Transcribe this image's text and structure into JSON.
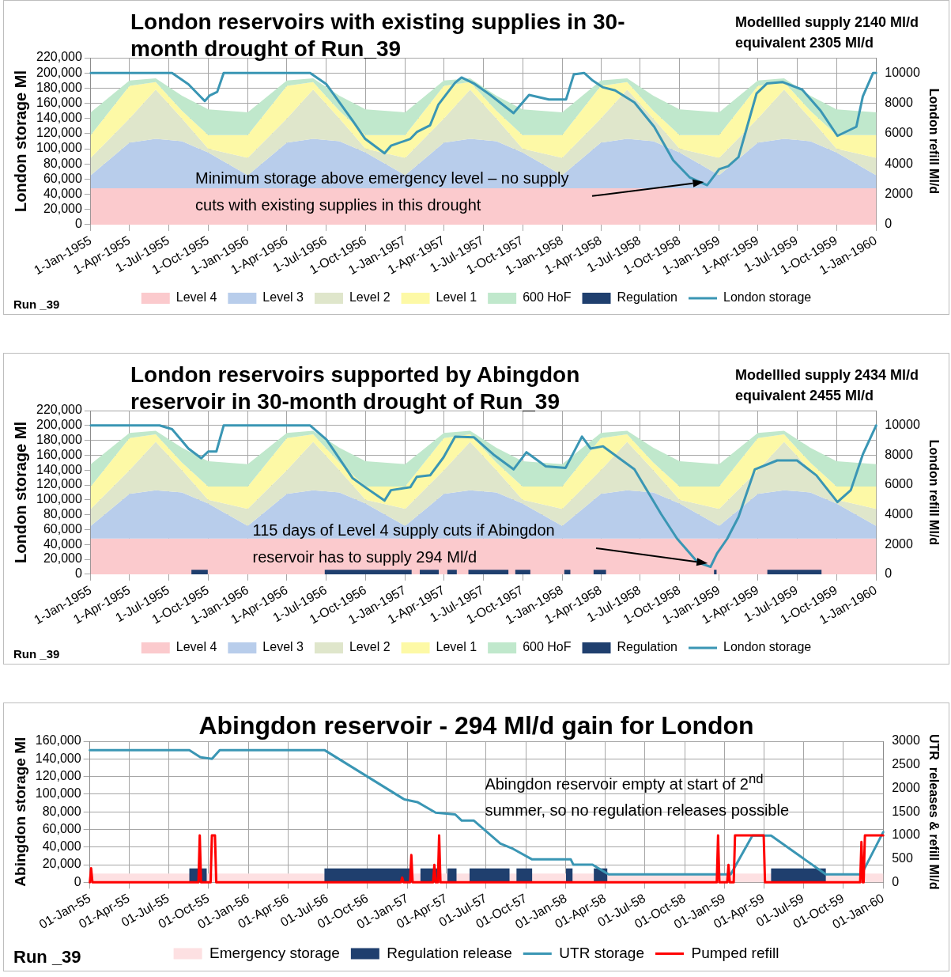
{
  "chart_data": [
    {
      "type": "area",
      "title": "London reservoirs with existing supplies in 30-month drought of Run_39",
      "ylabel": "London storage Ml",
      "y2label": "London refill Ml/d",
      "annotations": [
        "Modellled supply 2140 Ml/d",
        "equivalent 2305 Ml/d",
        "Minimum storage above emergency level – no supply cuts with existing supplies in this drought",
        "Run _39"
      ],
      "x": [
        "1955-01-01",
        "1955-04-01",
        "1955-06-01",
        "1955-08-01",
        "1955-10-01",
        "1956-01-01",
        "1956-04-01",
        "1956-06-01",
        "1956-08-01",
        "1956-10-01",
        "1957-01-01",
        "1957-04-01",
        "1957-06-01",
        "1957-08-01",
        "1957-10-01",
        "1958-01-01",
        "1958-04-01",
        "1958-06-01",
        "1958-08-01",
        "1958-10-01",
        "1959-01-01",
        "1959-04-01",
        "1959-06-01",
        "1959-08-01",
        "1959-10-01",
        "1960-01-01"
      ],
      "series": [
        {
          "name": "Level 4",
          "color": "#fbcacd",
          "values": [
            48000,
            48000,
            48000,
            48000,
            48000,
            48000,
            48000,
            48000,
            48000,
            48000,
            48000,
            48000,
            48000,
            48000,
            48000,
            48000,
            48000,
            48000,
            48000,
            48000,
            48000,
            48000,
            48000,
            48000,
            48000,
            48000
          ]
        },
        {
          "name": "Level 3",
          "color": "#b8cdeb",
          "values": [
            17000,
            60000,
            65000,
            62000,
            47000,
            17000,
            60000,
            65000,
            62000,
            47000,
            17000,
            60000,
            65000,
            62000,
            47000,
            17000,
            60000,
            65000,
            62000,
            47000,
            17000,
            60000,
            65000,
            62000,
            47000,
            17000
          ]
        },
        {
          "name": "Level 2",
          "color": "#dfe6cb",
          "values": [
            23000,
            32000,
            65000,
            30000,
            5000,
            23000,
            32000,
            65000,
            30000,
            5000,
            23000,
            32000,
            65000,
            30000,
            5000,
            23000,
            32000,
            65000,
            30000,
            5000,
            23000,
            32000,
            65000,
            30000,
            5000,
            23000
          ]
        },
        {
          "name": "Level 1",
          "color": "#fdf9a6",
          "values": [
            30000,
            43000,
            10000,
            10000,
            18000,
            30000,
            43000,
            10000,
            10000,
            18000,
            30000,
            43000,
            10000,
            10000,
            18000,
            30000,
            43000,
            10000,
            10000,
            18000,
            30000,
            43000,
            10000,
            10000,
            18000,
            30000
          ]
        },
        {
          "name": "600 HoF",
          "color": "#c0e8cc",
          "values": [
            30000,
            7000,
            5000,
            20000,
            34000,
            30000,
            7000,
            5000,
            20000,
            34000,
            30000,
            7000,
            5000,
            20000,
            34000,
            30000,
            7000,
            5000,
            20000,
            34000,
            30000,
            7000,
            5000,
            20000,
            34000,
            30000
          ]
        },
        {
          "name": "Regulation",
          "color": "#1f3f6e",
          "axis": "y2",
          "values": [
            null,
            null,
            null,
            null,
            null,
            null,
            null,
            null,
            null,
            null,
            null,
            null,
            null,
            null,
            null,
            null,
            null,
            null,
            null,
            null,
            null,
            null,
            null,
            null,
            null,
            null
          ]
        },
        {
          "name": "London storage",
          "color": "#3a96b4",
          "type": "line",
          "x": [
            "1955-01-01",
            "1955-07-09",
            "1955-08-16",
            "1955-09-23",
            "1955-10-04",
            "1955-10-22",
            "1955-11-06",
            "1956-05-25",
            "1956-07-02",
            "1956-09-01",
            "1956-09-30",
            "1956-11-14",
            "1956-11-29",
            "1957-01-13",
            "1957-01-28",
            "1957-02-28",
            "1957-03-19",
            "1957-04-27",
            "1957-05-12",
            "1957-06-10",
            "1957-07-18",
            "1957-09-10",
            "1957-10-16",
            "1957-12-01",
            "1958-01-10",
            "1958-01-28",
            "1958-02-21",
            "1958-03-13",
            "1958-04-06",
            "1958-05-04",
            "1958-06-18",
            "1958-08-03",
            "1958-09-16",
            "1958-10-25",
            "1958-12-04",
            "1959-01-01",
            "1959-01-22",
            "1959-02-15",
            "1959-03-07",
            "1959-03-29",
            "1959-04-22",
            "1959-05-28",
            "1959-07-13",
            "1959-08-25",
            "1959-10-03",
            "1959-11-16",
            "1959-12-01",
            "1959-12-25",
            "1960-01-01"
          ],
          "values": [
            200000,
            200000,
            185000,
            163000,
            170000,
            175000,
            200000,
            200000,
            185000,
            137000,
            113000,
            94000,
            104000,
            113000,
            122000,
            131000,
            158000,
            187000,
            194000,
            186000,
            171000,
            147000,
            171000,
            165000,
            165000,
            198000,
            200000,
            190000,
            181000,
            177000,
            161000,
            129000,
            85000,
            62000,
            52000,
            73000,
            77000,
            89000,
            129000,
            173000,
            186000,
            188000,
            178000,
            150000,
            117000,
            129000,
            169000,
            200000,
            200000
          ]
        }
      ],
      "xlim": [
        "1955-01-01",
        "1960-01-01"
      ],
      "xticks": [
        {
          "value": "1955-01-01",
          "label": "1-Jan-1955"
        },
        {
          "value": "1955-04-01",
          "label": "1-Apr-1955"
        },
        {
          "value": "1955-07-01",
          "label": "1-Jul-1955"
        },
        {
          "value": "1955-10-01",
          "label": "1-Oct-1955"
        },
        {
          "value": "1956-01-01",
          "label": "1-Jan-1956"
        },
        {
          "value": "1956-04-01",
          "label": "1-Apr-1956"
        },
        {
          "value": "1956-07-01",
          "label": "1-Jul-1956"
        },
        {
          "value": "1956-10-01",
          "label": "1-Oct-1956"
        },
        {
          "value": "1957-01-01",
          "label": "1-Jan-1957"
        },
        {
          "value": "1957-04-01",
          "label": "1-Apr-1957"
        },
        {
          "value": "1957-07-01",
          "label": "1-Jul-1957"
        },
        {
          "value": "1957-10-01",
          "label": "1-Oct-1957"
        },
        {
          "value": "1958-01-01",
          "label": "1-Jan-1958"
        },
        {
          "value": "1958-04-01",
          "label": "1-Apr-1958"
        },
        {
          "value": "1958-07-01",
          "label": "1-Jul-1958"
        },
        {
          "value": "1958-10-01",
          "label": "1-Oct-1958"
        },
        {
          "value": "1959-01-01",
          "label": "1-Jan-1959"
        },
        {
          "value": "1959-04-01",
          "label": "1-Apr-1959"
        },
        {
          "value": "1959-07-01",
          "label": "1-Jul-1959"
        },
        {
          "value": "1959-10-01",
          "label": "1-Oct-1959"
        },
        {
          "value": "1960-01-01",
          "label": "1-Jan-1960"
        }
      ],
      "ylim": [
        0,
        220000
      ],
      "yticks": [
        {
          "value": 0,
          "label": "0"
        },
        {
          "value": 20000,
          "label": "20,000"
        },
        {
          "value": 40000,
          "label": "40,000"
        },
        {
          "value": 60000,
          "label": "60,000"
        },
        {
          "value": 80000,
          "label": "80,000"
        },
        {
          "value": 100000,
          "label": "100,000"
        },
        {
          "value": 120000,
          "label": "120,000"
        },
        {
          "value": 140000,
          "label": "140,000"
        },
        {
          "value": 160000,
          "label": "160,000"
        },
        {
          "value": 180000,
          "label": "180,000"
        },
        {
          "value": 200000,
          "label": "200,000"
        },
        {
          "value": 220000,
          "label": "220,000"
        }
      ],
      "y2lim": [
        0,
        11000
      ],
      "y2ticks": [
        0,
        2000,
        4000,
        6000,
        8000,
        10000
      ],
      "grid": true,
      "legend": "bottom",
      "marker": "none",
      "line_style": "solid",
      "stacked": true
    },
    {
      "type": "area",
      "title": "London reservoirs supported by Abingdon reservoir in 30-month drought of Run_39",
      "ylabel": "London storage Ml",
      "y2label": "London refill Ml/d",
      "annotations": [
        "Modellled supply 2434 Ml/d",
        "equivalent 2455 Ml/d",
        "115 days of Level 4 supply cuts if Abingdon reservoir has to supply 294 Ml/d",
        "Run _39"
      ],
      "x": [
        "1955-01-01",
        "1955-04-01",
        "1955-06-01",
        "1955-08-01",
        "1955-10-01",
        "1956-01-01",
        "1956-04-01",
        "1956-06-01",
        "1956-08-01",
        "1956-10-01",
        "1957-01-01",
        "1957-04-01",
        "1957-06-01",
        "1957-08-01",
        "1957-10-01",
        "1958-01-01",
        "1958-04-01",
        "1958-06-01",
        "1958-08-01",
        "1958-10-01",
        "1959-01-01",
        "1959-04-01",
        "1959-06-01",
        "1959-08-01",
        "1959-10-01",
        "1960-01-01"
      ],
      "series": [
        {
          "name": "Level 4",
          "color": "#fbcacd",
          "values": [
            48000,
            48000,
            48000,
            48000,
            48000,
            48000,
            48000,
            48000,
            48000,
            48000,
            48000,
            48000,
            48000,
            48000,
            48000,
            48000,
            48000,
            48000,
            48000,
            48000,
            48000,
            48000,
            48000,
            48000,
            48000,
            48000
          ]
        },
        {
          "name": "Level 3",
          "color": "#b8cdeb",
          "values": [
            17000,
            60000,
            65000,
            62000,
            47000,
            17000,
            60000,
            65000,
            62000,
            47000,
            17000,
            60000,
            65000,
            62000,
            47000,
            17000,
            60000,
            65000,
            62000,
            47000,
            17000,
            60000,
            65000,
            62000,
            47000,
            17000
          ]
        },
        {
          "name": "Level 2",
          "color": "#dfe6cb",
          "values": [
            23000,
            32000,
            65000,
            30000,
            5000,
            23000,
            32000,
            65000,
            30000,
            5000,
            23000,
            32000,
            65000,
            30000,
            5000,
            23000,
            32000,
            65000,
            30000,
            5000,
            23000,
            32000,
            65000,
            30000,
            5000,
            23000
          ]
        },
        {
          "name": "Level 1",
          "color": "#fdf9a6",
          "values": [
            30000,
            43000,
            10000,
            10000,
            18000,
            30000,
            43000,
            10000,
            10000,
            18000,
            30000,
            43000,
            10000,
            10000,
            18000,
            30000,
            43000,
            10000,
            10000,
            18000,
            30000,
            43000,
            10000,
            10000,
            18000,
            30000
          ]
        },
        {
          "name": "600 HoF",
          "color": "#c0e8cc",
          "values": [
            30000,
            7000,
            5000,
            20000,
            34000,
            30000,
            7000,
            5000,
            20000,
            34000,
            30000,
            7000,
            5000,
            20000,
            34000,
            30000,
            7000,
            5000,
            20000,
            34000,
            30000,
            7000,
            5000,
            20000,
            34000,
            30000
          ]
        },
        {
          "name": "Regulation",
          "color": "#1f3f6e",
          "axis": "y2",
          "x": [
            "1955-01-01",
            "1955-08-23",
            "1955-08-23",
            "1955-09-30",
            "1955-09-30",
            "1956-06-28",
            "1956-06-28",
            "1957-01-16",
            "1957-01-16",
            "1957-02-04",
            "1957-02-04",
            "1957-03-20",
            "1957-03-20",
            "1957-04-09",
            "1957-04-09",
            "1957-05-01",
            "1957-05-01",
            "1957-05-28",
            "1957-05-28",
            "1957-08-29",
            "1957-08-29",
            "1957-09-14",
            "1957-09-14",
            "1957-10-19",
            "1957-10-19",
            "1958-01-06",
            "1958-01-06",
            "1958-01-20",
            "1958-01-20",
            "1958-03-15",
            "1958-03-15",
            "1958-04-13",
            "1958-04-13",
            "1958-12-20",
            "1958-12-20",
            "1958-12-26",
            "1958-12-26",
            "1959-04-23",
            "1959-04-23",
            "1959-08-27",
            "1959-08-27",
            "1960-01-01"
          ],
          "values": [
            0,
            0,
            294,
            294,
            0,
            0,
            294,
            294,
            0,
            0,
            294,
            294,
            0,
            0,
            294,
            294,
            0,
            0,
            294,
            294,
            0,
            0,
            294,
            294,
            0,
            0,
            294,
            294,
            0,
            0,
            294,
            294,
            0,
            0,
            294,
            294,
            0,
            0,
            294,
            294,
            0,
            0
          ]
        },
        {
          "name": "London storage",
          "color": "#3a96b4",
          "type": "line",
          "x": [
            "1955-01-01",
            "1955-06-10",
            "1955-07-09",
            "1955-08-16",
            "1955-09-15",
            "1955-10-01",
            "1955-10-20",
            "1955-11-06",
            "1956-05-25",
            "1956-07-02",
            "1956-09-01",
            "1956-09-30",
            "1956-11-14",
            "1956-11-29",
            "1957-01-13",
            "1957-01-28",
            "1957-02-28",
            "1957-03-31",
            "1957-04-27",
            "1957-06-10",
            "1957-07-25",
            "1957-09-10",
            "1957-10-10",
            "1957-11-24",
            "1958-01-09",
            "1958-02-16",
            "1958-03-08",
            "1958-04-06",
            "1958-06-18",
            "1958-08-19",
            "1958-09-25",
            "1958-11-12",
            "1958-12-12",
            "1958-12-27",
            "1959-01-20",
            "1959-02-15",
            "1959-03-25",
            "1959-05-16",
            "1959-07-01",
            "1959-08-15",
            "1959-10-03",
            "1959-11-03",
            "1959-12-01",
            "1960-01-01"
          ],
          "values": [
            200000,
            200000,
            195000,
            169000,
            156000,
            165000,
            165000,
            200000,
            200000,
            181000,
            129000,
            117000,
            99000,
            113000,
            117000,
            131000,
            133000,
            157000,
            185000,
            184000,
            161000,
            141000,
            164000,
            145000,
            143000,
            185000,
            169000,
            172000,
            141000,
            81000,
            48000,
            16000,
            10000,
            28000,
            48000,
            77000,
            141000,
            153000,
            153000,
            133000,
            97000,
            113000,
            161000,
            200000
          ]
        }
      ],
      "xlim": [
        "1955-01-01",
        "1960-01-01"
      ],
      "xticks": [
        {
          "value": "1955-01-01",
          "label": "1-Jan-1955"
        },
        {
          "value": "1955-04-01",
          "label": "1-Apr-1955"
        },
        {
          "value": "1955-07-01",
          "label": "1-Jul-1955"
        },
        {
          "value": "1955-10-01",
          "label": "1-Oct-1955"
        },
        {
          "value": "1956-01-01",
          "label": "1-Jan-1956"
        },
        {
          "value": "1956-04-01",
          "label": "1-Apr-1956"
        },
        {
          "value": "1956-07-01",
          "label": "1-Jul-1956"
        },
        {
          "value": "1956-10-01",
          "label": "1-Oct-1956"
        },
        {
          "value": "1957-01-01",
          "label": "1-Jan-1957"
        },
        {
          "value": "1957-04-01",
          "label": "1-Apr-1957"
        },
        {
          "value": "1957-07-01",
          "label": "1-Jul-1957"
        },
        {
          "value": "1957-10-01",
          "label": "1-Oct-1957"
        },
        {
          "value": "1958-01-01",
          "label": "1-Jan-1958"
        },
        {
          "value": "1958-04-01",
          "label": "1-Apr-1958"
        },
        {
          "value": "1958-07-01",
          "label": "1-Jul-1958"
        },
        {
          "value": "1958-10-01",
          "label": "1-Oct-1958"
        },
        {
          "value": "1959-01-01",
          "label": "1-Jan-1959"
        },
        {
          "value": "1959-04-01",
          "label": "1-Apr-1959"
        },
        {
          "value": "1959-07-01",
          "label": "1-Jul-1959"
        },
        {
          "value": "1959-10-01",
          "label": "1-Oct-1959"
        },
        {
          "value": "1960-01-01",
          "label": "1-Jan-1960"
        }
      ],
      "ylim": [
        0,
        220000
      ],
      "yticks": [
        {
          "value": 0,
          "label": "0"
        },
        {
          "value": 20000,
          "label": "20,000"
        },
        {
          "value": 40000,
          "label": "40,000"
        },
        {
          "value": 60000,
          "label": "60,000"
        },
        {
          "value": 80000,
          "label": "80,000"
        },
        {
          "value": 100000,
          "label": "100,000"
        },
        {
          "value": 120000,
          "label": "120,000"
        },
        {
          "value": 140000,
          "label": "140,000"
        },
        {
          "value": 160000,
          "label": "160,000"
        },
        {
          "value": 180000,
          "label": "180,000"
        },
        {
          "value": 200000,
          "label": "200,000"
        },
        {
          "value": 220000,
          "label": "220,000"
        }
      ],
      "y2lim": [
        0,
        11000
      ],
      "y2ticks": [
        0,
        2000,
        4000,
        6000,
        8000,
        10000
      ],
      "grid": true,
      "legend": "bottom",
      "marker": "none",
      "line_style": "solid",
      "stacked": true
    },
    {
      "type": "line",
      "title": "Abingdon reservoir - 294 Ml/d gain for London",
      "ylabel": "Abingdon storage Ml",
      "y2label": "UTR  releases & refill Ml/d",
      "annotations": [
        "Abingdon reservoir empty at start of 2$^{nd}$ summer, so no regulation releases possible",
        "Run _39"
      ],
      "series": [
        {
          "name": "Emergency storage",
          "color": "#fde0e2",
          "type": "area",
          "x": [
            "1955-01-01",
            "1960-01-01"
          ],
          "values": [
            10000,
            10000
          ]
        },
        {
          "name": "Regulation release",
          "color": "#1f3f6e",
          "type": "area",
          "axis": "y2",
          "x": [
            "1955-01-01",
            "1955-08-18",
            "1955-08-18",
            "1955-09-27",
            "1955-09-27",
            "1956-06-24",
            "1956-06-24",
            "1957-01-12",
            "1957-01-12",
            "1957-01-31",
            "1957-01-31",
            "1957-03-15",
            "1957-03-15",
            "1957-04-03",
            "1957-04-03",
            "1957-04-24",
            "1957-04-24",
            "1957-05-24",
            "1957-05-24",
            "1957-08-24",
            "1957-08-24",
            "1957-09-09",
            "1957-09-09",
            "1957-10-15",
            "1957-10-15",
            "1958-01-01",
            "1958-01-01",
            "1958-01-16",
            "1958-01-16",
            "1958-03-06",
            "1958-03-06",
            "1958-04-06",
            "1958-04-06",
            "1959-04-18",
            "1959-04-18",
            "1959-08-22",
            "1959-08-22",
            "1960-01-01"
          ],
          "values": [
            0,
            0,
            294,
            294,
            0,
            0,
            294,
            294,
            0,
            0,
            294,
            294,
            0,
            0,
            294,
            294,
            0,
            0,
            294,
            294,
            0,
            0,
            294,
            294,
            0,
            0,
            294,
            294,
            0,
            0,
            294,
            294,
            0,
            0,
            294,
            294,
            0,
            0
          ]
        },
        {
          "name": "UTR storage",
          "color": "#3a96b4",
          "x": [
            "1955-01-01",
            "1955-08-18",
            "1955-09-12",
            "1955-10-09",
            "1955-10-27",
            "1956-06-24",
            "1956-12-25",
            "1957-01-24",
            "1957-03-07",
            "1957-04-21",
            "1957-05-06",
            "1957-06-03",
            "1957-08-03",
            "1957-09-01",
            "1957-10-15",
            "1958-01-12",
            "1958-01-18",
            "1958-03-03",
            "1958-04-09",
            "1959-01-15",
            "1959-03-06",
            "1959-04-18",
            "1959-08-22",
            "1959-11-12",
            "1960-01-01"
          ],
          "values": [
            150000,
            150000,
            142000,
            140000,
            150000,
            150000,
            94000,
            91000,
            79000,
            77000,
            70000,
            70000,
            44000,
            38000,
            26000,
            26000,
            20000,
            20000,
            9000,
            9000,
            53000,
            53000,
            9000,
            9000,
            57000
          ]
        },
        {
          "name": "Pumped refill",
          "color": "#ff0000",
          "axis": "y2",
          "x": [
            "1955-01-01",
            "1955-01-04",
            "1955-01-07",
            "1955-09-08",
            "1955-09-11",
            "1955-09-14",
            "1955-10-06",
            "1955-10-09",
            "1955-10-16",
            "1955-10-19",
            "1956-12-17",
            "1956-12-20",
            "1956-12-23",
            "1957-01-07",
            "1957-01-10",
            "1957-01-13",
            "1957-03-01",
            "1957-03-04",
            "1957-03-07",
            "1957-03-12",
            "1957-03-15",
            "1957-03-18",
            "1958-12-14",
            "1958-12-17",
            "1958-12-20",
            "1959-01-07",
            "1959-01-10",
            "1959-01-13",
            "1959-01-22",
            "1959-01-25",
            "1959-04-01",
            "1959-04-04",
            "1959-11-09",
            "1959-11-12",
            "1959-11-15",
            "1959-11-17",
            "1959-11-20",
            "1960-01-01"
          ],
          "values": [
            0,
            300,
            0,
            0,
            1000,
            0,
            0,
            1000,
            1000,
            0,
            0,
            100,
            0,
            0,
            580,
            0,
            0,
            370,
            0,
            0,
            1000,
            0,
            0,
            1000,
            0,
            0,
            370,
            0,
            0,
            1000,
            1000,
            0,
            0,
            860,
            0,
            0,
            1000,
            1000
          ]
        }
      ],
      "xlim": [
        "1955-01-01",
        "1960-01-01"
      ],
      "xticks": [
        {
          "value": "1955-01-01",
          "label": "01-Jan-55"
        },
        {
          "value": "1955-04-01",
          "label": "01-Apr-55"
        },
        {
          "value": "1955-07-01",
          "label": "01-Jul-55"
        },
        {
          "value": "1955-10-01",
          "label": "01-Oct-55"
        },
        {
          "value": "1956-01-01",
          "label": "01-Jan-56"
        },
        {
          "value": "1956-04-01",
          "label": "01-Apr-56"
        },
        {
          "value": "1956-07-01",
          "label": "01-Jul-56"
        },
        {
          "value": "1956-10-01",
          "label": "01-Oct-56"
        },
        {
          "value": "1957-01-01",
          "label": "01-Jan-57"
        },
        {
          "value": "1957-04-01",
          "label": "01-Apr-57"
        },
        {
          "value": "1957-07-01",
          "label": "01-Jul-57"
        },
        {
          "value": "1957-10-01",
          "label": "01-Oct-57"
        },
        {
          "value": "1958-01-01",
          "label": "01-Jan-58"
        },
        {
          "value": "1958-04-01",
          "label": "01-Apr-58"
        },
        {
          "value": "1958-07-01",
          "label": "01-Jul-58"
        },
        {
          "value": "1958-10-01",
          "label": "01-Oct-58"
        },
        {
          "value": "1959-01-01",
          "label": "01-Jan-59"
        },
        {
          "value": "1959-04-01",
          "label": "01-Apr-59"
        },
        {
          "value": "1959-07-01",
          "label": "01-Jul-59"
        },
        {
          "value": "1959-10-01",
          "label": "01-Oct-59"
        },
        {
          "value": "1960-01-01",
          "label": "01-Jan-60"
        }
      ],
      "ylim": [
        0,
        160000
      ],
      "yticks": [
        {
          "value": 0,
          "label": "0"
        },
        {
          "value": 20000,
          "label": "20,000"
        },
        {
          "value": 40000,
          "label": "40,000"
        },
        {
          "value": 60000,
          "label": "60,000"
        },
        {
          "value": 80000,
          "label": "80,000"
        },
        {
          "value": 100000,
          "label": "100,000"
        },
        {
          "value": 120000,
          "label": "120,000"
        },
        {
          "value": 140000,
          "label": "140,000"
        },
        {
          "value": 160000,
          "label": "160,000"
        }
      ],
      "y2lim": [
        0,
        3000
      ],
      "y2ticks": [
        0,
        500,
        1000,
        1500,
        2000,
        2500,
        3000
      ],
      "grid": true,
      "legend": "bottom",
      "marker": "none",
      "line_style": "solid"
    }
  ]
}
